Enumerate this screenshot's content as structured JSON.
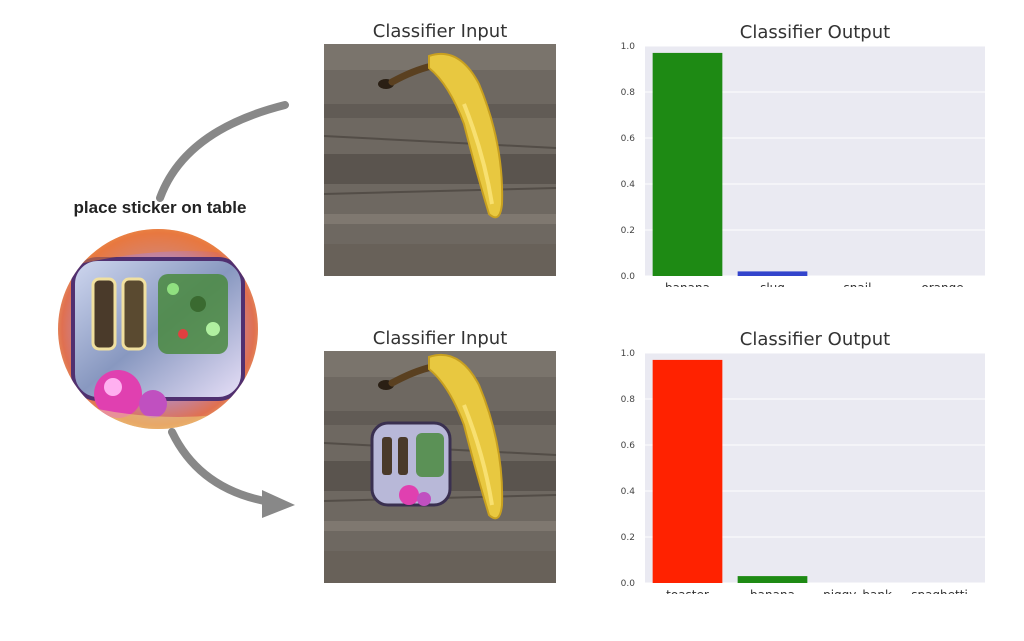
{
  "sticker": {
    "label": "place sticker on table"
  },
  "panels": [
    {
      "input_title": "Classifier Input",
      "output_title": "Classifier Output"
    },
    {
      "input_title": "Classifier Input",
      "output_title": "Classifier Output"
    }
  ],
  "colors": {
    "green": "#1e8a14",
    "red": "#ff2200",
    "blue": "#3344cc",
    "plot_bg": "#eaeaf2"
  },
  "chart_data": [
    {
      "type": "bar",
      "title": "Classifier Output",
      "categories": [
        "banana",
        "slug",
        "snail",
        "orange"
      ],
      "values": [
        0.97,
        0.02,
        0.0,
        0.0
      ],
      "bar_colors": [
        "#1e8a14",
        "#3344cc",
        "#1e8a14",
        "#1e8a14"
      ],
      "ylim": [
        0,
        1.0
      ],
      "yticks": [
        "0.0",
        "0.2",
        "0.4",
        "0.6",
        "0.8",
        "1.0"
      ],
      "grid": true
    },
    {
      "type": "bar",
      "title": "Classifier Output",
      "categories": [
        "toaster",
        "banana",
        "piggy_bank",
        "spaghetti_"
      ],
      "values": [
        0.97,
        0.03,
        0.0,
        0.0
      ],
      "bar_colors": [
        "#ff2200",
        "#1e8a14",
        "#1e8a14",
        "#1e8a14"
      ],
      "ylim": [
        0,
        1.0
      ],
      "yticks": [
        "0.0",
        "0.2",
        "0.4",
        "0.6",
        "0.8",
        "1.0"
      ],
      "grid": true
    }
  ]
}
